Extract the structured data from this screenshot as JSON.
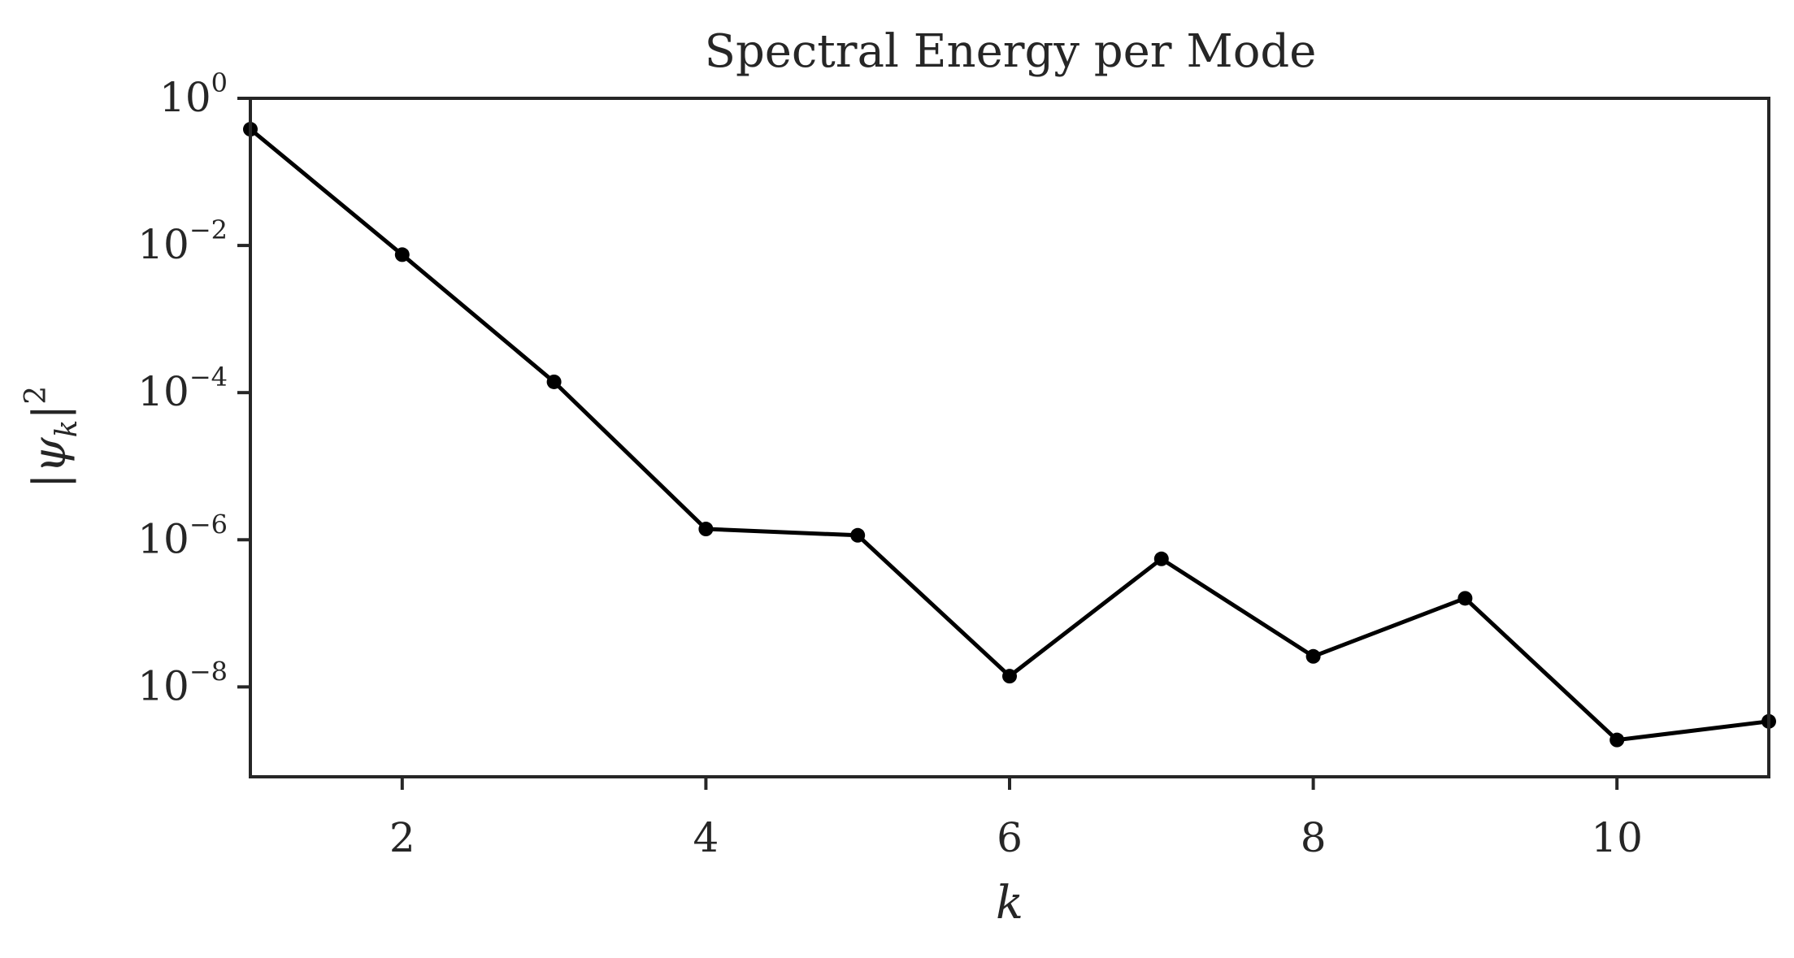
{
  "chart_data": {
    "type": "line",
    "title": "Spectral Energy per Mode",
    "xlabel": "k",
    "ylabel": "|ψ_k|^2",
    "xlim": [
      1,
      11
    ],
    "ylim": [
      6e-10,
      1
    ],
    "yscale": "log",
    "grid": false,
    "legend": "none",
    "x_ticks": [
      2,
      4,
      6,
      8,
      10
    ],
    "y_ticks": [
      {
        "value": 1,
        "base": "10",
        "exp": "0"
      },
      {
        "value": 0.01,
        "base": "10",
        "exp": "−2"
      },
      {
        "value": 0.0001,
        "base": "10",
        "exp": "−4"
      },
      {
        "value": 1e-06,
        "base": "10",
        "exp": "−6"
      },
      {
        "value": 1e-08,
        "base": "10",
        "exp": "−8"
      }
    ],
    "series": [
      {
        "color": "#000000",
        "marker": "circle",
        "x": [
          1,
          2,
          3,
          4,
          5,
          6,
          7,
          8,
          9,
          10,
          11
        ],
        "y": [
          0.38,
          0.0075,
          0.00014,
          1.4e-06,
          1.15e-06,
          1.4e-08,
          5.5e-07,
          2.6e-08,
          1.6e-07,
          1.9e-09,
          3.4e-09
        ]
      }
    ]
  }
}
